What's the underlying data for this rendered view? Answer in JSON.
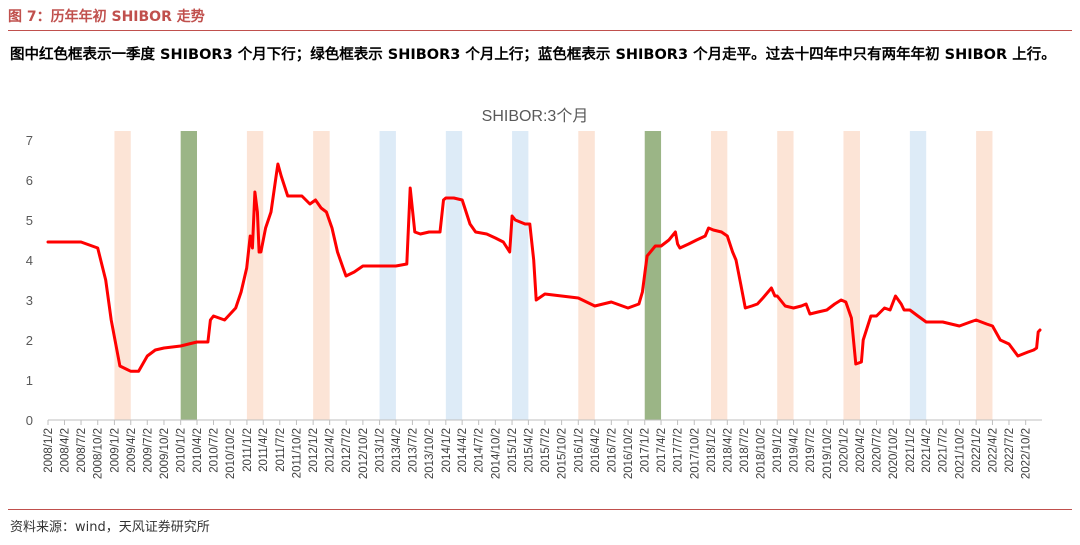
{
  "figure_title": "图 7：历年年初 SHIBOR 走势",
  "description": "图中红色框表示一季度 SHIBOR3 个月下行；绿色框表示 SHIBOR3 个月上行；蓝色框表示 SHIBOR3 个月走平。过去十四年中只有两年年初 SHIBOR 上行。",
  "source": "资料来源：wind，天风证券研究所",
  "colors": {
    "accent": "#c0504d",
    "line": "#ff0000",
    "band_down": "#fce4d6",
    "band_up": "#9bb586",
    "band_flat": "#ddebf7"
  },
  "chart_data": {
    "type": "line",
    "title": "SHIBOR:3个月",
    "xlabel": "",
    "ylabel": "",
    "ylim": [
      0,
      7
    ],
    "yticks": [
      0,
      1,
      2,
      3,
      4,
      5,
      6,
      7
    ],
    "grid": false,
    "legend": "none",
    "xticks": [
      "2008/1/2",
      "2008/4/2",
      "2008/7/2",
      "2008/10/2",
      "2009/1/2",
      "2009/4/2",
      "2009/7/2",
      "2009/10/2",
      "2010/1/2",
      "2010/4/2",
      "2010/7/2",
      "2010/10/2",
      "2011/1/2",
      "2011/4/2",
      "2011/7/2",
      "2011/10/2",
      "2012/1/2",
      "2012/4/2",
      "2012/7/2",
      "2012/10/2",
      "2013/1/2",
      "2013/4/2",
      "2013/7/2",
      "2013/10/2",
      "2014/1/2",
      "2014/4/2",
      "2014/7/2",
      "2014/10/2",
      "2015/1/2",
      "2015/4/2",
      "2015/7/2",
      "2015/10/2",
      "2016/1/2",
      "2016/4/2",
      "2016/7/2",
      "2016/10/2",
      "2017/1/2",
      "2017/4/2",
      "2017/7/2",
      "2017/10/2",
      "2018/1/2",
      "2018/4/2",
      "2018/7/2",
      "2018/10/2",
      "2019/1/2",
      "2019/4/2",
      "2019/7/2",
      "2019/10/2",
      "2020/1/2",
      "2020/4/2",
      "2020/7/2",
      "2020/10/2",
      "2021/1/2",
      "2021/4/2",
      "2021/7/2",
      "2021/10/2",
      "2022/1/2",
      "2022/4/2",
      "2022/7/2",
      "2022/10/2"
    ],
    "bands": [
      {
        "start": "2009/1/2",
        "end": "2009/4/2",
        "kind": "down"
      },
      {
        "start": "2010/1/2",
        "end": "2010/4/2",
        "kind": "up"
      },
      {
        "start": "2011/1/2",
        "end": "2011/4/2",
        "kind": "down"
      },
      {
        "start": "2012/1/2",
        "end": "2012/4/2",
        "kind": "down"
      },
      {
        "start": "2013/1/2",
        "end": "2013/4/2",
        "kind": "flat"
      },
      {
        "start": "2014/1/2",
        "end": "2014/4/2",
        "kind": "flat"
      },
      {
        "start": "2015/1/2",
        "end": "2015/4/2",
        "kind": "flat"
      },
      {
        "start": "2016/1/2",
        "end": "2016/4/2",
        "kind": "down"
      },
      {
        "start": "2017/1/2",
        "end": "2017/4/2",
        "kind": "up"
      },
      {
        "start": "2018/1/2",
        "end": "2018/4/2",
        "kind": "down"
      },
      {
        "start": "2019/1/2",
        "end": "2019/4/2",
        "kind": "down"
      },
      {
        "start": "2020/1/2",
        "end": "2020/4/2",
        "kind": "down"
      },
      {
        "start": "2021/1/2",
        "end": "2021/4/2",
        "kind": "flat"
      },
      {
        "start": "2022/1/2",
        "end": "2022/4/2",
        "kind": "down"
      }
    ],
    "series": [
      {
        "x": [
          "2008/1/2",
          "2008/7/2",
          "2008/10/2",
          "2008/11/15",
          "2008/12/15",
          "2009/2/1",
          "2009/4/1",
          "2009/5/15",
          "2009/7/2",
          "2009/8/15",
          "2009/10/2",
          "2010/1/2",
          "2010/2/15",
          "2010/4/2",
          "2010/6/1",
          "2010/6/15",
          "2010/7/2",
          "2010/9/1",
          "2010/11/1",
          "2010/12/1",
          "2011/1/1",
          "2011/1/20",
          "2011/2/1",
          "2011/2/15",
          "2011/3/1",
          "2011/3/10",
          "2011/3/20",
          "2011/4/15",
          "2011/5/15",
          "2011/6/15",
          "2011/6/22",
          "2011/7/10",
          "2011/8/15",
          "2011/9/15",
          "2011/11/1",
          "2011/12/15",
          "2012/1/15",
          "2012/2/15",
          "2012/3/15",
          "2012/4/15",
          "2012/5/15",
          "2012/6/15",
          "2012/7/1",
          "2012/8/15",
          "2012/10/2",
          "2013/1/2",
          "2013/4/2",
          "2013/6/1",
          "2013/6/20",
          "2013/7/15",
          "2013/8/15",
          "2013/10/2",
          "2013/12/1",
          "2013/12/20",
          "2014/1/2",
          "2014/2/15",
          "2014/4/2",
          "2014/5/15",
          "2014/6/15",
          "2014/8/15",
          "2014/10/2",
          "2014/11/15",
          "2014/12/20",
          "2015/1/2",
          "2015/1/20",
          "2015/3/15",
          "2015/4/10",
          "2015/5/1",
          "2015/5/15",
          "2015/7/2",
          "2015/10/2",
          "2016/1/2",
          "2016/4/2",
          "2016/7/2",
          "2016/10/2",
          "2016/12/1",
          "2016/12/20",
          "2017/1/15",
          "2017/3/1",
          "2017/4/2",
          "2017/5/15",
          "2017/6/20",
          "2017/7/2",
          "2017/7/15",
          "2017/9/1",
          "2017/10/15",
          "2017/12/1",
          "2017/12/20",
          "2018/1/15",
          "2018/3/1",
          "2018/4/2",
          "2018/5/1",
          "2018/5/20",
          "2018/6/15",
          "2018/7/10",
          "2018/8/15",
          "2018/9/15",
          "2018/10/15",
          "2018/12/1",
          "2018/12/20",
          "2019/1/2",
          "2019/2/15",
          "2019/4/2",
          "2019/5/15",
          "2019/6/10",
          "2019/7/1",
          "2019/8/15",
          "2019/10/2",
          "2019/11/15",
          "2019/12/20",
          "2020/1/15",
          "2020/2/15",
          "2020/3/10",
          "2020/4/10",
          "2020/4/20",
          "2020/6/1",
          "2020/7/2",
          "2020/8/15",
          "2020/9/15",
          "2020/10/15",
          "2020/11/15",
          "2020/12/1",
          "2021/1/2",
          "2021/2/15",
          "2021/4/2",
          "2021/7/2",
          "2021/10/2",
          "2021/12/1",
          "2022/1/2",
          "2022/3/1",
          "2022/4/2",
          "2022/5/15",
          "2022/7/2",
          "2022/8/20",
          "2022/10/15",
          "2022/11/15",
          "2022/12/1",
          "2022/12/10",
          "2022/12/20"
        ],
        "y": [
          4.45,
          4.45,
          4.3,
          3.5,
          2.5,
          1.35,
          1.22,
          1.22,
          1.6,
          1.75,
          1.8,
          1.85,
          1.9,
          1.95,
          1.95,
          2.5,
          2.6,
          2.5,
          2.8,
          3.2,
          3.8,
          4.6,
          4.3,
          5.7,
          5.2,
          4.2,
          4.2,
          4.8,
          5.2,
          6.2,
          6.4,
          6.1,
          5.6,
          5.6,
          5.6,
          5.4,
          5.5,
          5.3,
          5.2,
          4.8,
          4.2,
          3.8,
          3.6,
          3.7,
          3.85,
          3.85,
          3.85,
          3.9,
          5.8,
          4.7,
          4.65,
          4.7,
          4.7,
          5.5,
          5.55,
          5.55,
          5.5,
          4.9,
          4.7,
          4.65,
          4.55,
          4.45,
          4.2,
          5.1,
          5.0,
          4.9,
          4.9,
          4.0,
          3.0,
          3.15,
          3.1,
          3.05,
          2.85,
          2.95,
          2.8,
          2.9,
          3.2,
          4.1,
          4.35,
          4.35,
          4.5,
          4.7,
          4.4,
          4.3,
          4.4,
          4.5,
          4.6,
          4.8,
          4.75,
          4.7,
          4.6,
          4.2,
          4.0,
          3.4,
          2.8,
          2.85,
          2.9,
          3.05,
          3.3,
          3.1,
          3.1,
          2.85,
          2.8,
          2.85,
          2.9,
          2.65,
          2.7,
          2.75,
          2.9,
          3.0,
          2.95,
          2.55,
          1.4,
          1.45,
          2.0,
          2.6,
          2.6,
          2.8,
          2.75,
          3.1,
          2.9,
          2.75,
          2.75,
          2.6,
          2.45,
          2.45,
          2.35,
          2.45,
          2.5,
          2.4,
          2.35,
          2.0,
          1.9,
          1.6,
          1.7,
          1.75,
          1.8,
          2.2,
          2.25
        ]
      }
    ]
  }
}
